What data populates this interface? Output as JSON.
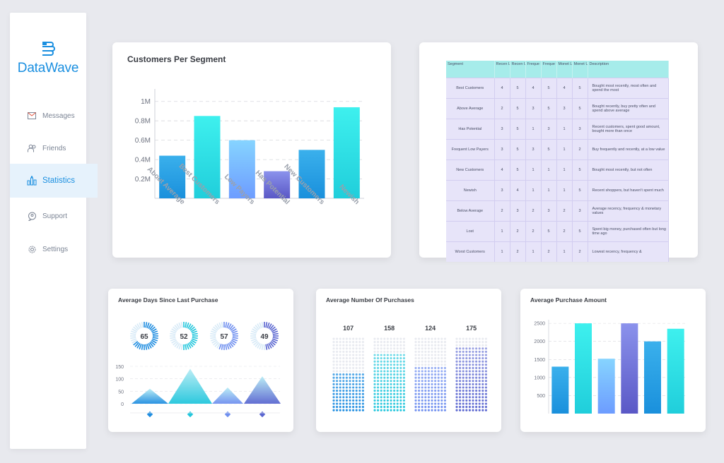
{
  "app": {
    "name": "DataWave"
  },
  "sidebar": {
    "items": [
      {
        "label": "Messages",
        "icon": "envelope-icon"
      },
      {
        "label": "Friends",
        "icon": "users-icon"
      },
      {
        "label": "Statistics",
        "icon": "bar-chart-icon",
        "active": true
      },
      {
        "label": "Support",
        "icon": "support-icon"
      },
      {
        "label": "Settings",
        "icon": "gear-icon"
      }
    ]
  },
  "colors": {
    "accent": "#1a8fe0",
    "active_bg": "#e6f2fc"
  },
  "customers_card": {
    "title": "Customers Per Segment"
  },
  "segment_table": {
    "headers": [
      "Segment",
      "Recen Lower",
      "Recen Upper",
      "Freque Lower",
      "Freque Upper",
      "Monet Lower",
      "Monet Upper",
      "Description"
    ],
    "rows": [
      {
        "cells": [
          "Best Customers",
          "4",
          "5",
          "4",
          "5",
          "4",
          "5"
        ],
        "desc": "Bought most recently, most often and spend the most"
      },
      {
        "cells": [
          "Above Average",
          "2",
          "5",
          "3",
          "5",
          "3",
          "5"
        ],
        "desc": "Bought recently, buy pretty often and spend above average"
      },
      {
        "cells": [
          "Has Potential",
          "3",
          "5",
          "1",
          "3",
          "1",
          "3"
        ],
        "desc": "Recent customers, spent good amount, bought more than once"
      },
      {
        "cells": [
          "Frequent Low Payers",
          "3",
          "5",
          "3",
          "5",
          "1",
          "2"
        ],
        "desc": "Buy frequently and recently, at a low value"
      },
      {
        "cells": [
          "New Customers",
          "4",
          "5",
          "1",
          "1",
          "1",
          "5"
        ],
        "desc": "Bought most recently, but not often"
      },
      {
        "cells": [
          "Newish",
          "3",
          "4",
          "1",
          "1",
          "1",
          "5"
        ],
        "desc": "Recent shoppers, but haven't spent much"
      },
      {
        "cells": [
          "Below Average",
          "2",
          "3",
          "2",
          "3",
          "2",
          "3"
        ],
        "desc": "Average recency, frequency & monetary values"
      },
      {
        "cells": [
          "Lost",
          "1",
          "2",
          "2",
          "5",
          "2",
          "5"
        ],
        "desc": "Spent big money, purchased often but long time ago"
      },
      {
        "cells": [
          "Worst Customers",
          "1",
          "2",
          "1",
          "2",
          "1",
          "2"
        ],
        "desc": "Lowest recency, frequency &"
      }
    ]
  },
  "days_card": {
    "title": "Average Days Since Last Purchase"
  },
  "purchases_card": {
    "title": "Average Number Of Purchases"
  },
  "amount_card": {
    "title": "Average Purchase Amount"
  },
  "chart_data": [
    {
      "type": "bar",
      "title": "Customers Per Segment",
      "categories": [
        "About Average",
        "Best Customers",
        "Low Payers",
        "Has Potential",
        "New Customers",
        "Newish"
      ],
      "values": [
        0.44,
        0.85,
        0.6,
        0.28,
        0.5,
        0.94
      ],
      "value_unit": "M",
      "ylim": [
        0,
        1.1
      ],
      "yticks": [
        "0.2M",
        "0.4M",
        "0.6M",
        "0.8M",
        "1M"
      ],
      "grid": true,
      "colors": [
        [
          "#1a90dc",
          "#3ab0ec"
        ],
        [
          "#20cedb",
          "#3ef0ee"
        ],
        [
          "#6d9cff",
          "#86d4ff"
        ],
        [
          "#5a58c6",
          "#8b92ec"
        ],
        [
          "#1a90dc",
          "#3ab0ec"
        ],
        [
          "#20cedb",
          "#3ef0ee"
        ]
      ]
    },
    {
      "type": "radial",
      "title": "Average Days Since Last Purchase",
      "values": [
        65,
        52,
        57,
        49
      ],
      "colors": [
        "#1f8de0",
        "#22c6dc",
        "#6f8fef",
        "#5a66d0"
      ]
    },
    {
      "type": "area",
      "title": "Average Days Since Last Purchase",
      "values": [
        60,
        140,
        65,
        110
      ],
      "ylim": [
        0,
        150
      ],
      "yticks": [
        "0",
        "50",
        "100",
        "150"
      ],
      "colors": [
        "#1f8de0",
        "#22c6dc",
        "#6f8fef",
        "#5a66d0"
      ]
    },
    {
      "type": "bar",
      "title": "Average Number Of Purchases",
      "values": [
        107,
        158,
        124,
        175
      ],
      "max": 200,
      "colors": [
        "#1f8de0",
        "#22c6dc",
        "#6f8fef",
        "#5a66d0"
      ]
    },
    {
      "type": "bar",
      "title": "Average Purchase Amount",
      "values": [
        1300,
        2500,
        1520,
        2500,
        2000,
        2350
      ],
      "ylim": [
        0,
        2600
      ],
      "yticks": [
        "500",
        "1000",
        "1500",
        "2000",
        "2500"
      ],
      "grid": true,
      "colors": [
        [
          "#1a90dc",
          "#3ab0ec"
        ],
        [
          "#20cedb",
          "#3ef0ee"
        ],
        [
          "#6d9cff",
          "#86d4ff"
        ],
        [
          "#5a58c6",
          "#8b92ec"
        ],
        [
          "#1a90dc",
          "#3ab0ec"
        ],
        [
          "#20cedb",
          "#3ef0ee"
        ]
      ]
    }
  ]
}
